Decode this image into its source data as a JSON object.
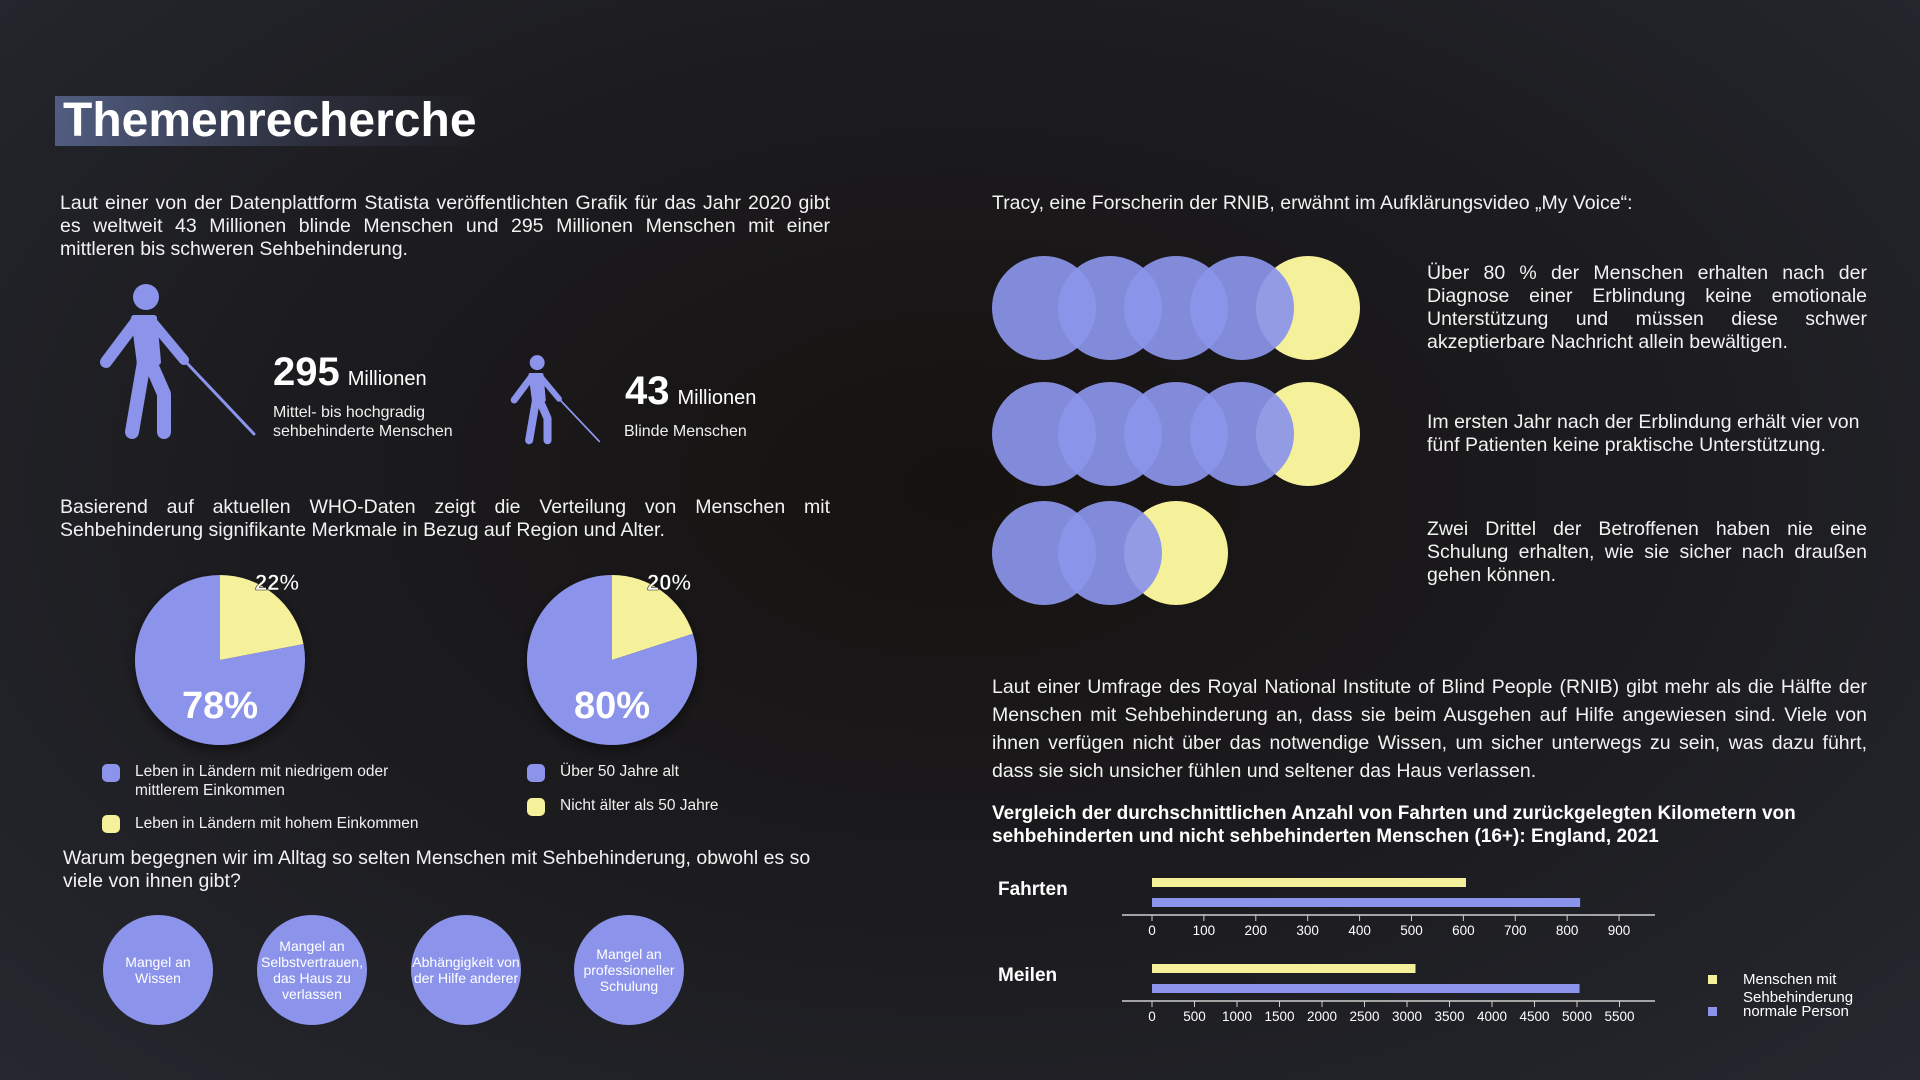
{
  "title": "Themenrecherche",
  "intro": "Laut einer von der Datenplattform Statista veröffentlichten Grafik für das Jahr 2020 gibt es weltweit 43 Millionen blinde Menschen und 295 Millionen Menschen mit einer mittleren bis schweren Sehbehinderung.",
  "stats": [
    {
      "number": "295",
      "unit": "Millionen",
      "label": "Mittel- bis hochgradig sehbehinderte Menschen"
    },
    {
      "number": "43",
      "unit": "Millionen",
      "label": "Blinde Menschen"
    }
  ],
  "who_text": "Basierend auf aktuellen WHO-Daten zeigt die Verteilung von Menschen mit Sehbehinderung signifikante Merkmale in Bezug auf Region und Alter.",
  "colors": {
    "purple": "#8b94ea",
    "yellow": "#f5f09a"
  },
  "question": "Warum begegnen wir im Alltag so selten Menschen mit Sehbehinderung, obwohl es so viele von ihnen gibt?",
  "reasons": [
    "Mangel an Wissen",
    "Mangel an Selbstvertrauen, das Haus zu verlassen",
    "Abhängigkeit von der Hilfe anderer",
    "Mangel an professioneller Schulung"
  ],
  "tracy_intro": "Tracy, eine Forscherin der RNIB, erwähnt im Aufklärungsvideo „My Voice“:",
  "tracy_stats": [
    {
      "text": "Über 80 % der Menschen erhalten nach der Diagnose einer Erblindung keine emotionale Unterstützung und müssen diese schwer akzeptierbare Nachricht allein bewältigen.",
      "filled": 4,
      "total": 5
    },
    {
      "text": "Im ersten Jahr nach der Erblindung erhält vier von fünf Patienten keine praktische Unterstützung.",
      "filled": 4,
      "total": 5
    },
    {
      "text": "Zwei Drittel der Betroffenen haben nie eine Schulung erhalten, wie sie sicher nach draußen gehen können.",
      "filled": 2,
      "total": 3
    }
  ],
  "rnib_text": "Laut einer Umfrage des Royal National Institute of Blind People (RNIB) gibt mehr als die Hälfte der Menschen mit Sehbehinderung an, dass sie beim Ausgehen auf Hilfe angewiesen sind. Viele von ihnen verfügen nicht über das notwendige Wissen, um sicher unterwegs zu sein, was dazu führt, dass sie sich unsicher fühlen und seltener das Haus verlassen.",
  "chart_data": [
    {
      "type": "pie",
      "labels": [
        "Leben in Ländern mit niedrigem oder mittlerem Einkommen",
        "Leben in Ländern mit hohem Einkommen"
      ],
      "values": [
        78,
        22
      ],
      "value_labels": [
        "78%",
        "22%"
      ],
      "colors": [
        "#8b94ea",
        "#f5f09a"
      ],
      "legend": "bottom"
    },
    {
      "type": "pie",
      "labels": [
        "Über 50 Jahre alt",
        "Nicht älter als 50 Jahre"
      ],
      "values": [
        80,
        20
      ],
      "value_labels": [
        "80%",
        "20%"
      ],
      "colors": [
        "#8b94ea",
        "#f5f09a"
      ],
      "legend": "bottom"
    },
    {
      "type": "bar",
      "orientation": "horizontal",
      "title": "Vergleich der durchschnittlichen Anzahl von Fahrten und zurückgelegten Kilometern von sehbehinderten und nicht sehbehinderten Menschen (16+): England, 2021",
      "legend": "bottom-right",
      "series_names": [
        "Menschen mit Sehbehinderung",
        "normale Person"
      ],
      "series_colors": [
        "#f5f09a",
        "#8b94ea"
      ],
      "panels": [
        {
          "label": "Fahrten",
          "values": [
            605,
            825
          ],
          "xlim": [
            0,
            950
          ],
          "ticks": [
            0,
            100,
            200,
            300,
            400,
            500,
            600,
            700,
            800,
            900
          ]
        },
        {
          "label": "Meilen",
          "values": [
            3100,
            5030
          ],
          "xlim": [
            0,
            5800
          ],
          "ticks": [
            0,
            500,
            1000,
            1500,
            2000,
            2500,
            3000,
            3500,
            4000,
            4500,
            5000,
            5500
          ]
        }
      ]
    }
  ]
}
